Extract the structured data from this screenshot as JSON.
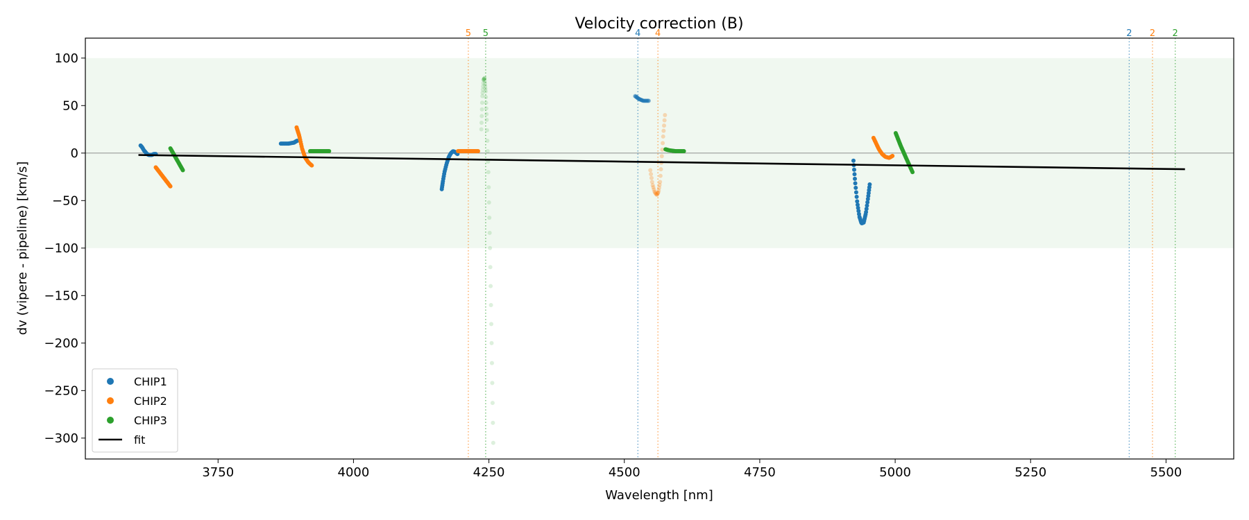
{
  "chart_data": {
    "type": "scatter",
    "title": "Velocity correction (B)",
    "xlabel": "Wavelength [nm]",
    "ylabel": "dv (vipere - pipeline) [km/s]",
    "xlim": [
      3505,
      5625
    ],
    "ylim": [
      -322,
      121
    ],
    "xticks": [
      3750,
      4000,
      4250,
      4500,
      4750,
      5000,
      5250,
      5500
    ],
    "yticks": [
      100,
      50,
      0,
      -50,
      -100,
      -150,
      -200,
      -250,
      -300
    ],
    "band": {
      "y0": -100,
      "y1": 100,
      "color": "#f0f8f0"
    },
    "zero_line": 0,
    "legend_position": "lower-left",
    "colors": {
      "CHIP1": "#1f77b4",
      "CHIP2": "#ff7f0e",
      "CHIP3": "#2ca02c",
      "fit": "#000000"
    },
    "legend": [
      {
        "label": "CHIP1",
        "kind": "marker",
        "color": "#1f77b4"
      },
      {
        "label": "CHIP2",
        "kind": "marker",
        "color": "#ff7f0e"
      },
      {
        "label": "CHIP3",
        "kind": "marker",
        "color": "#2ca02c"
      },
      {
        "label": "fit",
        "kind": "line",
        "color": "#000000"
      }
    ],
    "fit": {
      "x": [
        3603,
        5535
      ],
      "y": [
        -2,
        -17
      ]
    },
    "vlines": [
      {
        "x": 4212,
        "label": "5",
        "series": "CHIP2"
      },
      {
        "x": 4244,
        "label": "5",
        "series": "CHIP3"
      },
      {
        "x": 4525,
        "label": "4",
        "series": "CHIP1"
      },
      {
        "x": 4562,
        "label": "4",
        "series": "CHIP2"
      },
      {
        "x": 5432,
        "label": "2",
        "series": "CHIP1"
      },
      {
        "x": 5475,
        "label": "2",
        "series": "CHIP2"
      },
      {
        "x": 5517,
        "label": "2",
        "series": "CHIP3"
      }
    ],
    "segments": [
      {
        "series": "CHIP1",
        "opacity": 1.0,
        "n": 22,
        "x": [
          3607,
          3610,
          3613,
          3616,
          3619,
          3622,
          3625,
          3628,
          3631,
          3635
        ],
        "y": [
          8,
          6,
          3,
          1,
          -1,
          -2,
          -2,
          -2,
          -1,
          -1
        ]
      },
      {
        "series": "CHIP2",
        "opacity": 1.0,
        "n": 26,
        "x": [
          3635,
          3662
        ],
        "y": [
          -15,
          -35
        ]
      },
      {
        "series": "CHIP3",
        "opacity": 1.0,
        "n": 24,
        "x": [
          3662,
          3670,
          3678,
          3685
        ],
        "y": [
          5,
          -3,
          -11,
          -18
        ]
      },
      {
        "series": "CHIP1",
        "opacity": 1.0,
        "n": 22,
        "x": [
          3866,
          3880,
          3890,
          3896
        ],
        "y": [
          10,
          10,
          11,
          13
        ]
      },
      {
        "series": "CHIP2",
        "opacity": 1.0,
        "n": 28,
        "x": [
          3895,
          3900,
          3905,
          3911,
          3917,
          3923
        ],
        "y": [
          27,
          18,
          5,
          -5,
          -10,
          -13
        ]
      },
      {
        "series": "CHIP3",
        "opacity": 1.0,
        "n": 22,
        "x": [
          3920,
          3955
        ],
        "y": [
          2,
          2
        ]
      },
      {
        "series": "CHIP1",
        "opacity": 1.0,
        "n": 32,
        "x": [
          4163,
          4165,
          4168,
          4172,
          4176,
          4180,
          4184,
          4188,
          4192
        ],
        "y": [
          -38,
          -30,
          -20,
          -11,
          -4,
          0,
          2,
          1,
          -1
        ]
      },
      {
        "series": "CHIP2",
        "opacity": 1.0,
        "n": 20,
        "x": [
          4193,
          4230
        ],
        "y": [
          2,
          2
        ]
      },
      {
        "series": "CHIP3",
        "opacity": 0.16,
        "n": 46,
        "x": [
          4236,
          4238,
          4240,
          4242,
          4244,
          4246,
          4249,
          4252,
          4255,
          4258
        ],
        "y": [
          25,
          60,
          77,
          79,
          65,
          35,
          -20,
          -100,
          -200,
          -305
        ]
      },
      {
        "series": "CHIP1",
        "opacity": 0.55,
        "n": 18,
        "x": [
          4520,
          4527,
          4535,
          4545
        ],
        "y": [
          60,
          57,
          55,
          55
        ]
      },
      {
        "series": "CHIP2",
        "opacity": 0.28,
        "n": 30,
        "x": [
          4548,
          4552,
          4556,
          4560,
          4563,
          4566,
          4569,
          4572,
          4575
        ],
        "y": [
          -18,
          -33,
          -41,
          -44,
          -41,
          -30,
          -5,
          20,
          40
        ]
      },
      {
        "series": "CHIP3",
        "opacity": 1.0,
        "n": 22,
        "x": [
          4576,
          4582,
          4595,
          4610
        ],
        "y": [
          4,
          3,
          2,
          2
        ]
      },
      {
        "series": "CHIP1",
        "opacity": 1.0,
        "n": 38,
        "x": [
          4923,
          4926,
          4930,
          4934,
          4938,
          4942,
          4946,
          4950,
          4953
        ],
        "y": [
          -8,
          -30,
          -52,
          -67,
          -74,
          -73,
          -63,
          -47,
          -33
        ]
      },
      {
        "series": "CHIP2",
        "opacity": 1.0,
        "n": 24,
        "x": [
          4960,
          4965,
          4970,
          4976,
          4982,
          4989,
          4995
        ],
        "y": [
          16,
          10,
          4,
          -1,
          -4,
          -5,
          -3
        ]
      },
      {
        "series": "CHIP3",
        "opacity": 1.0,
        "n": 34,
        "x": [
          5001,
          5010,
          5020,
          5032
        ],
        "y": [
          21,
          8,
          -5,
          -20
        ]
      }
    ]
  }
}
